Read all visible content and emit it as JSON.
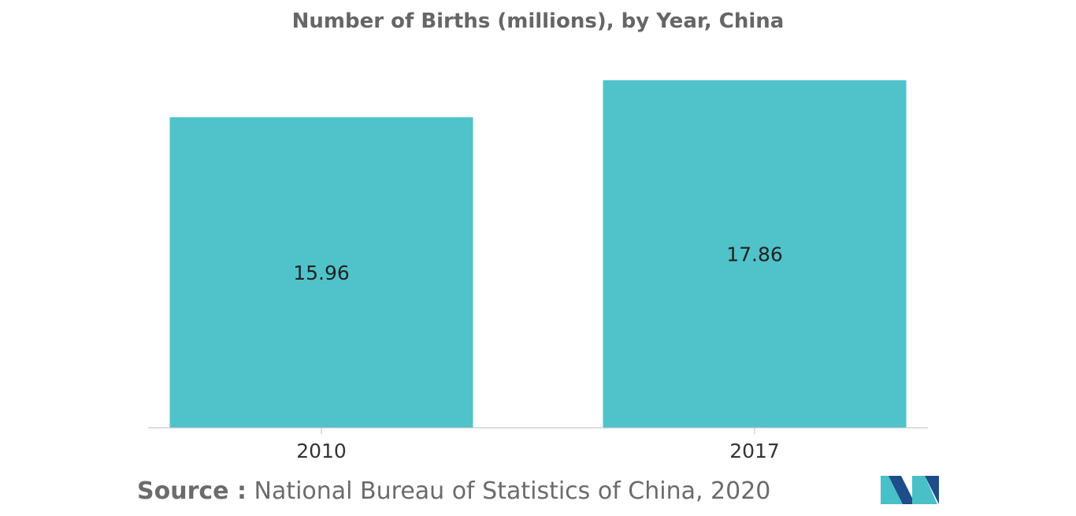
{
  "chart_data": {
    "type": "bar",
    "title": "Number of Births (millions), by Year, China",
    "categories": [
      "2010",
      "2017"
    ],
    "values": [
      15.96,
      17.86
    ],
    "value_labels": [
      "15.96",
      "17.86"
    ],
    "xlabel": "",
    "ylabel": "",
    "ylim": [
      0,
      18.5
    ],
    "grid": false,
    "legend": "none",
    "bar_color": "#4fc3c9"
  },
  "source": {
    "label": "Source :",
    "text": "National Bureau of Statistics of China, 2020"
  },
  "logo": {
    "icon": "mordor-intelligence-logo-icon",
    "colors": [
      "#1d4e89",
      "#49c0c7"
    ]
  }
}
